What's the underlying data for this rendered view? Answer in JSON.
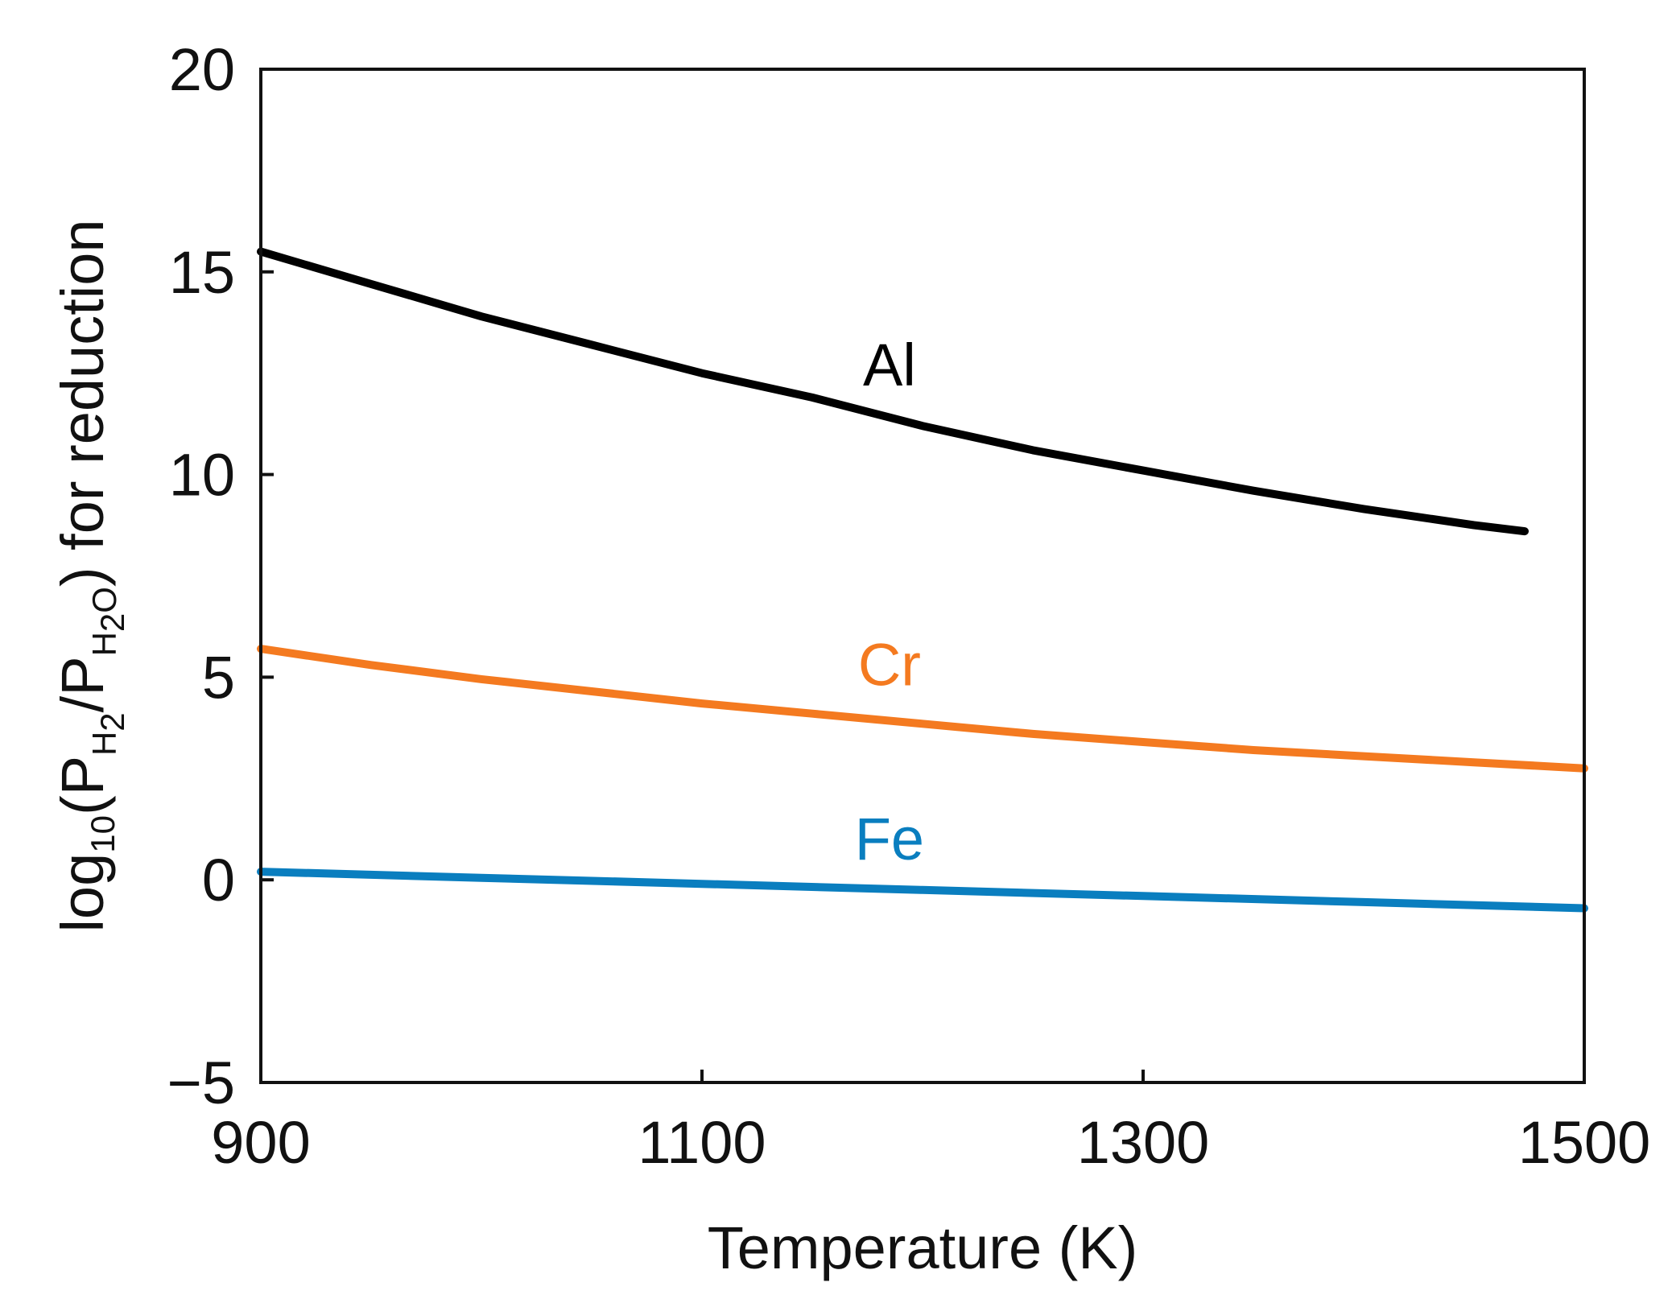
{
  "chart_data": {
    "type": "line",
    "title": "",
    "xlabel": "Temperature (K)",
    "ylabel": {
      "prefix": "log",
      "log_base": "10",
      "open": "(P",
      "num_sub": "H",
      "num_sub2": "2",
      "slash": "/P",
      "den_sub": "H",
      "den_sub2": "2",
      "den_sub3": "O",
      "suffix": ") for reduction"
    },
    "xlim": [
      900,
      1500
    ],
    "ylim": [
      -5,
      20
    ],
    "xticks": [
      {
        "value": 900,
        "label": "900"
      },
      {
        "value": 1100,
        "label": "1100"
      },
      {
        "value": 1300,
        "label": "1300"
      },
      {
        "value": 1500,
        "label": "1500"
      }
    ],
    "yticks": [
      {
        "value": -5,
        "label": "−5"
      },
      {
        "value": 0,
        "label": "0"
      },
      {
        "value": 5,
        "label": "5"
      },
      {
        "value": 10,
        "label": "10"
      },
      {
        "value": 15,
        "label": "15"
      },
      {
        "value": 20,
        "label": "20"
      }
    ],
    "grid": false,
    "series": [
      {
        "name": "Al",
        "color": "#000000",
        "x": [
          900,
          950,
          1000,
          1050,
          1100,
          1150,
          1200,
          1250,
          1300,
          1350,
          1400,
          1450,
          1473
        ],
        "y": [
          15.5,
          14.7,
          13.9,
          13.2,
          12.5,
          11.9,
          11.2,
          10.6,
          10.1,
          9.6,
          9.15,
          8.75,
          8.6
        ],
        "label_at": [
          1185,
          12.2
        ]
      },
      {
        "name": "Cr",
        "color": "#f47a20",
        "x": [
          900,
          950,
          1000,
          1050,
          1100,
          1150,
          1200,
          1250,
          1300,
          1350,
          1400,
          1450,
          1500
        ],
        "y": [
          5.7,
          5.3,
          4.95,
          4.65,
          4.35,
          4.1,
          3.85,
          3.6,
          3.4,
          3.2,
          3.05,
          2.9,
          2.75
        ],
        "label_at": [
          1185,
          4.8
        ]
      },
      {
        "name": "Fe",
        "color": "#0a7ebf",
        "x": [
          900,
          1000,
          1100,
          1200,
          1300,
          1400,
          1500
        ],
        "y": [
          0.2,
          0.05,
          -0.1,
          -0.25,
          -0.4,
          -0.55,
          -0.7
        ],
        "label_at": [
          1185,
          0.5
        ]
      }
    ]
  }
}
